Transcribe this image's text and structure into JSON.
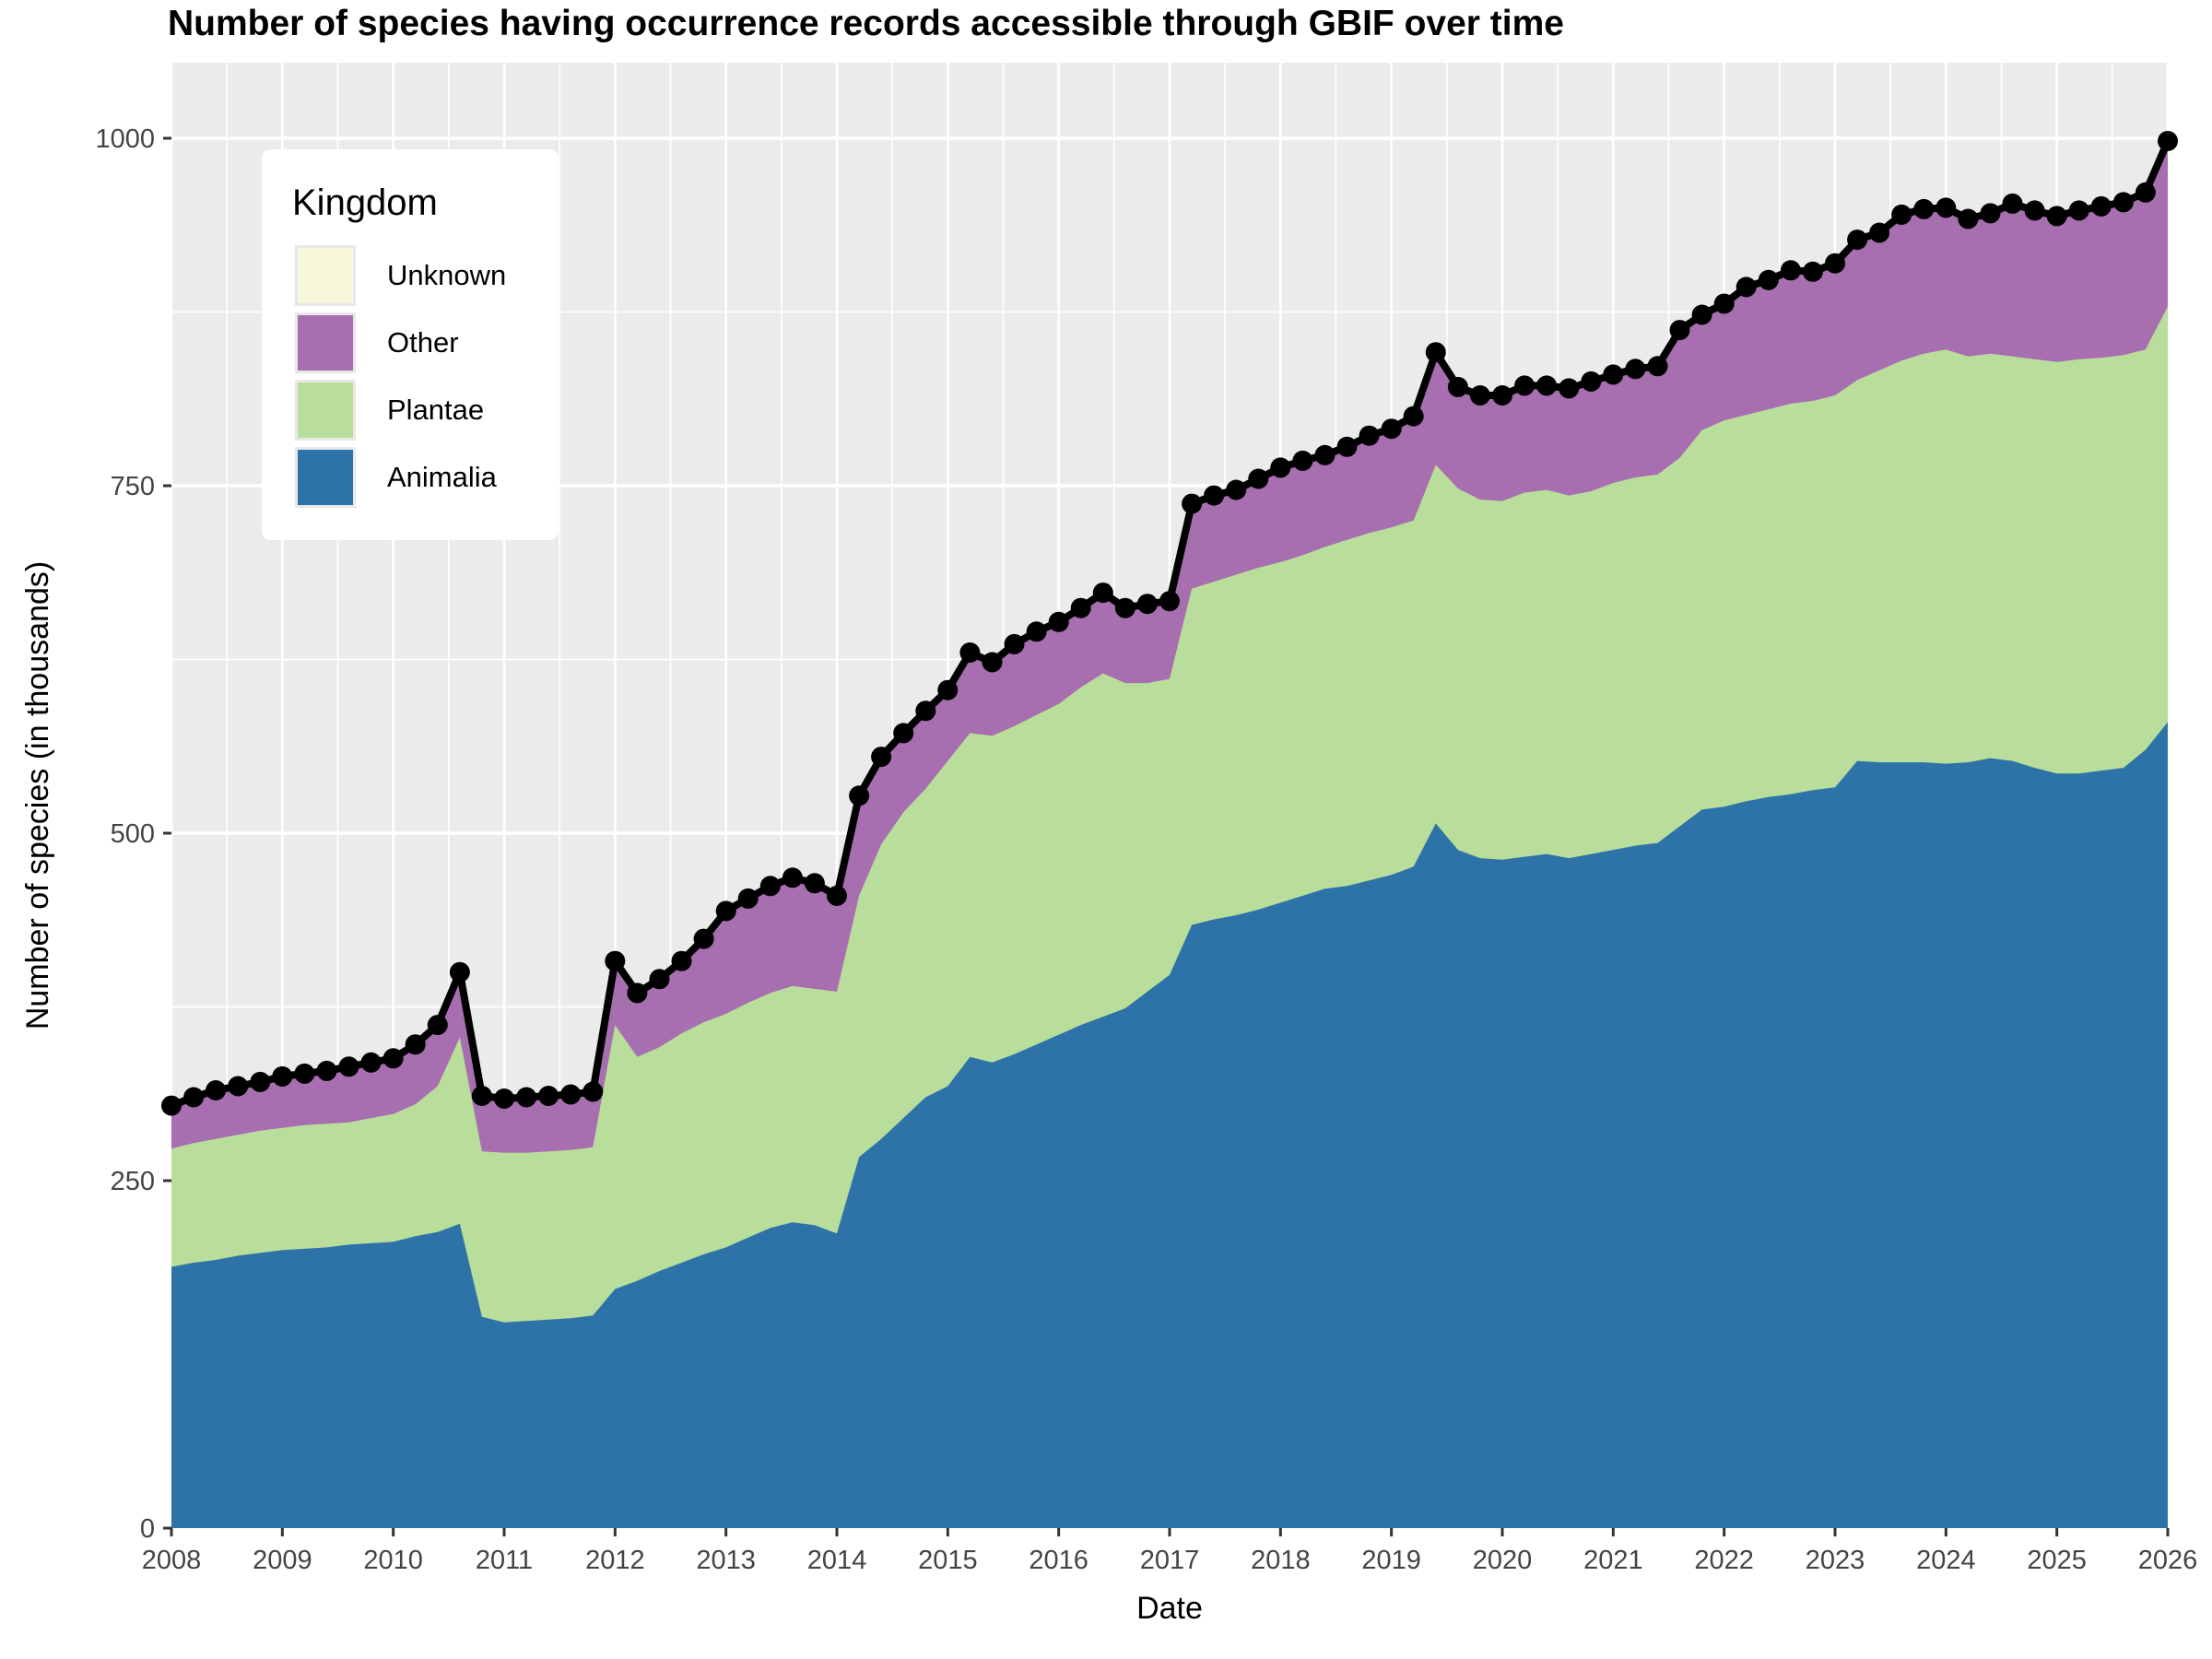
{
  "page": {
    "title": "Number of species having occurrence records accessible through GBIF over time"
  },
  "axes": {
    "x_title": "Date",
    "y_title": "Number of species (in thousands)",
    "y_ticks": [
      "0",
      "250",
      "500",
      "750",
      "1000"
    ],
    "y_tick_values": [
      0,
      250,
      500,
      750,
      1000
    ],
    "x_ticks": [
      "2008",
      "2009",
      "2010",
      "2011",
      "2012",
      "2013",
      "2014",
      "2015",
      "2016",
      "2017",
      "2018",
      "2019",
      "2020",
      "2021",
      "2022",
      "2023",
      "2024",
      "2025",
      "2026"
    ],
    "x_tick_values": [
      2008,
      2009,
      2010,
      2011,
      2012,
      2013,
      2014,
      2015,
      2016,
      2017,
      2018,
      2019,
      2020,
      2021,
      2022,
      2023,
      2024,
      2025,
      2026
    ]
  },
  "legend": {
    "title": "Kingdom",
    "items": [
      {
        "label": "Unknown",
        "color": "#F7F7DC"
      },
      {
        "label": "Other",
        "color": "#A76EB0"
      },
      {
        "label": "Plantae",
        "color": "#B9DE9B"
      },
      {
        "label": "Animalia",
        "color": "#2E73A8"
      }
    ]
  },
  "colors": {
    "panel_background": "#EBEBEB",
    "grid_major": "#FFFFFF",
    "grid_minor": "#FFFFFF",
    "total_line": "#000000",
    "tick_label": "#444444",
    "tick_mark": "#333333"
  },
  "chart_data": {
    "type": "area",
    "stacked": true,
    "title": "Number of species having occurrence records accessible through GBIF over time",
    "xlabel": "Date",
    "ylabel": "Number of species (in thousands)",
    "xlim": [
      2008,
      2026
    ],
    "ylim": [
      0,
      1054
    ],
    "grid": true,
    "legend_position": "inside-top-left",
    "units": "thousands of species",
    "overlay_line": "total with point markers",
    "x": [
      2008.0,
      2008.2,
      2008.4,
      2008.6,
      2008.8,
      2009.0,
      2009.2,
      2009.4,
      2009.6,
      2009.8,
      2010.0,
      2010.2,
      2010.4,
      2010.6,
      2010.8,
      2011.0,
      2011.2,
      2011.4,
      2011.6,
      2011.8,
      2012.0,
      2012.2,
      2012.4,
      2012.6,
      2012.8,
      2013.0,
      2013.2,
      2013.4,
      2013.6,
      2013.8,
      2014.0,
      2014.2,
      2014.4,
      2014.6,
      2014.8,
      2015.0,
      2015.2,
      2015.4,
      2015.6,
      2015.8,
      2016.0,
      2016.2,
      2016.4,
      2016.6,
      2016.8,
      2017.0,
      2017.2,
      2017.4,
      2017.6,
      2017.8,
      2018.0,
      2018.2,
      2018.4,
      2018.6,
      2018.8,
      2019.0,
      2019.2,
      2019.4,
      2019.6,
      2019.8,
      2020.0,
      2020.2,
      2020.4,
      2020.6,
      2020.8,
      2021.0,
      2021.2,
      2021.4,
      2021.6,
      2021.8,
      2022.0,
      2022.2,
      2022.4,
      2022.6,
      2022.8,
      2023.0,
      2023.2,
      2023.4,
      2023.6,
      2023.8,
      2024.0,
      2024.2,
      2024.4,
      2024.6,
      2024.8,
      2025.0,
      2025.2,
      2025.4,
      2025.6,
      2025.8,
      2026.0
    ],
    "series": [
      {
        "name": "Animalia",
        "color": "#2E73A8",
        "values": [
          188,
          191,
          193,
          196,
          198,
          200,
          201,
          202,
          204,
          205,
          206,
          210,
          213,
          219,
          152,
          148,
          149,
          150,
          151,
          153,
          172,
          178,
          185,
          191,
          197,
          202,
          209,
          216,
          220,
          218,
          212,
          267,
          280,
          295,
          310,
          318,
          339,
          335,
          341,
          348,
          355,
          362,
          368,
          374,
          386,
          398,
          434,
          438,
          441,
          445,
          450,
          455,
          460,
          462,
          466,
          470,
          476,
          507,
          488,
          482,
          481,
          483,
          485,
          482,
          485,
          488,
          491,
          493,
          505,
          517,
          519,
          523,
          526,
          528,
          531,
          533,
          552,
          551,
          551,
          551,
          550,
          551,
          554,
          552,
          547,
          543,
          543,
          545,
          547,
          560,
          580
        ]
      },
      {
        "name": "Plantae",
        "color": "#B9DE9B",
        "values": [
          85,
          86,
          87,
          87,
          88,
          88,
          89,
          89,
          88,
          90,
          92,
          95,
          105,
          134,
          119,
          122,
          121,
          121,
          121,
          121,
          190,
          161,
          161,
          165,
          167,
          168,
          169,
          169,
          170,
          170,
          174,
          188,
          212,
          220,
          222,
          234,
          233,
          235,
          236,
          237,
          238,
          243,
          247,
          234,
          222,
          213,
          242,
          243,
          245,
          246,
          245,
          245,
          246,
          249,
          250,
          250,
          249,
          258,
          260,
          258,
          258,
          262,
          262,
          261,
          261,
          264,
          265,
          265,
          265,
          273,
          278,
          278,
          279,
          281,
          280,
          282,
          274,
          282,
          289,
          294,
          298,
          292,
          291,
          291,
          294,
          296,
          298,
          297,
          297,
          288,
          299
        ]
      },
      {
        "name": "Other",
        "color": "#A76EB0",
        "values": [
          30,
          32,
          34,
          34,
          34,
          36,
          36,
          37,
          39,
          39,
          39,
          42,
          43,
          46,
          39,
          38,
          39,
          39,
          39,
          39,
          45,
          45,
          48,
          51,
          59,
          73,
          74,
          76,
          77,
          75,
          68,
          71,
          62,
          56,
          55,
          50,
          57,
          52,
          58,
          59,
          58,
          56,
          57,
          53,
          56,
          55,
          60,
          61,
          60,
          63,
          67,
          67,
          65,
          66,
          69,
          70,
          74,
          80,
          72,
          74,
          75,
          76,
          74,
          76,
          78,
          77,
          77,
          77,
          91,
          82,
          83,
          91,
          92,
          95,
          92,
          94,
          100,
          98,
          104,
          103,
          101,
          98,
          100,
          109,
          106,
          104,
          106,
          108,
          109,
          112,
          118
        ]
      },
      {
        "name": "Unknown",
        "color": "#F7F7DC",
        "values": [
          1,
          1,
          1,
          1,
          1,
          1,
          1,
          1,
          1,
          1,
          1,
          1,
          1,
          1,
          1,
          1,
          1,
          1,
          1,
          1,
          1,
          1,
          1,
          1,
          1,
          1,
          1,
          1,
          1,
          1,
          1,
          1,
          1,
          1,
          1,
          1,
          1,
          1,
          1,
          1,
          1,
          1,
          1,
          1,
          1,
          1,
          1,
          1,
          1,
          1,
          1,
          1,
          1,
          1,
          1,
          1,
          1,
          1,
          1,
          1,
          1,
          1,
          1,
          1,
          1,
          1,
          1,
          1,
          1,
          1,
          1,
          1,
          1,
          1,
          1,
          1,
          1,
          1,
          1,
          1,
          1,
          1,
          1,
          1,
          1,
          1,
          1,
          1,
          1,
          1,
          1
        ]
      }
    ],
    "total_line": {
      "color": "#000000",
      "point_markers": true,
      "values": [
        304,
        310,
        315,
        318,
        321,
        325,
        327,
        329,
        332,
        335,
        338,
        348,
        362,
        400,
        311,
        309,
        310,
        311,
        312,
        314,
        408,
        385,
        395,
        408,
        424,
        444,
        453,
        462,
        468,
        464,
        455,
        527,
        555,
        572,
        588,
        603,
        630,
        623,
        636,
        645,
        652,
        662,
        673,
        662,
        665,
        667,
        737,
        743,
        747,
        755,
        763,
        768,
        772,
        778,
        786,
        791,
        800,
        846,
        821,
        815,
        815,
        822,
        822,
        820,
        825,
        830,
        834,
        836,
        862,
        873,
        881,
        893,
        898,
        905,
        904,
        910,
        927,
        932,
        945,
        949,
        950,
        942,
        946,
        953,
        948,
        944,
        948,
        951,
        954,
        961,
        998
      ]
    }
  }
}
